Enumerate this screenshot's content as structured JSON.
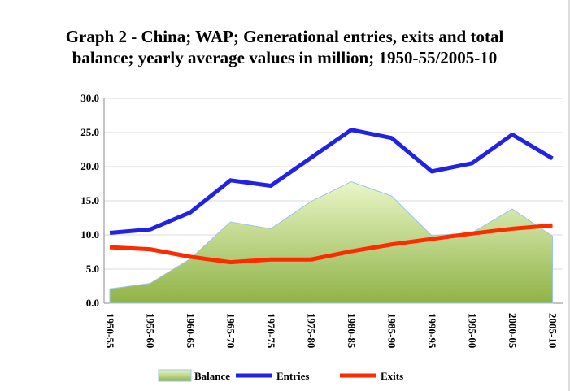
{
  "chart_data": {
    "type": "area-line",
    "title": "Graph 2 - China; WAP; Generational entries, exits and total balance; yearly average values in million; 1950-55/2005-10",
    "categories": [
      "1950-55",
      "1955-60",
      "1960-65",
      "1965-70",
      "1970-75",
      "1975-80",
      "1980-85",
      "1985-90",
      "1990-95",
      "1995-00",
      "2000-05",
      "2005-10"
    ],
    "series": [
      {
        "name": "Balance",
        "kind": "area",
        "color": "#9bbb59",
        "values": [
          2.1,
          2.9,
          6.5,
          11.9,
          10.9,
          14.9,
          17.8,
          15.7,
          9.9,
          10.3,
          13.8,
          9.8
        ]
      },
      {
        "name": "Entries",
        "kind": "line",
        "color": "#2222e6",
        "values": [
          10.3,
          10.8,
          13.3,
          18.0,
          17.2,
          21.3,
          25.4,
          24.2,
          19.3,
          20.5,
          24.7,
          21.2
        ]
      },
      {
        "name": "Exits",
        "kind": "line",
        "color": "#ff2a00",
        "values": [
          8.2,
          7.9,
          6.8,
          6.0,
          6.4,
          6.4,
          7.6,
          8.6,
          9.4,
          10.2,
          10.9,
          11.4
        ]
      }
    ],
    "ylim": [
      0,
      30
    ],
    "yticks": [
      {
        "value": 0,
        "label": "0.0"
      },
      {
        "value": 5,
        "label": "5.0"
      },
      {
        "value": 10,
        "label": "10.0"
      },
      {
        "value": 15,
        "label": "15.0"
      },
      {
        "value": 20,
        "label": "20.0"
      },
      {
        "value": 25,
        "label": "25.0"
      },
      {
        "value": 30,
        "label": "30.0"
      }
    ],
    "grid": true
  }
}
